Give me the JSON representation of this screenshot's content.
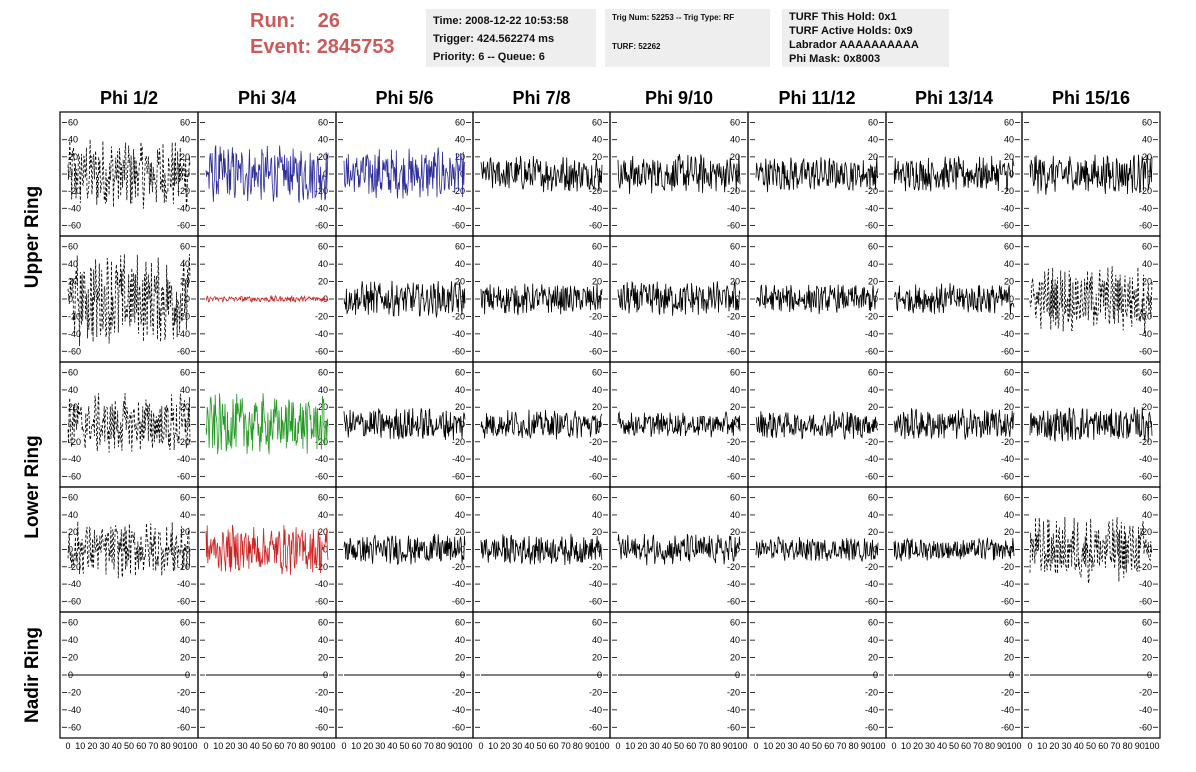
{
  "header": {
    "run_label": "Run:",
    "run_value": "26",
    "event_label": "Event:",
    "event_value": "2845753",
    "time": "Time: 2008-12-22 10:53:58",
    "trigger": "Trigger: 424.562274 ms",
    "priority": "Priority: 6 -- Queue: 6",
    "trig_num": "Trig Num: 52253 -- Trig Type: RF",
    "turf": "TURF: 52262",
    "turf_this_hold": "TURF This Hold: 0x1",
    "turf_active_holds": "TURF Active Holds: 0x9",
    "labrador": "Labrador AAAAAAAAAA",
    "phi_mask": "Phi Mask: 0x8003"
  },
  "chart_data": {
    "type": "line",
    "columns": [
      "Phi 1/2",
      "Phi 3/4",
      "Phi 5/6",
      "Phi 7/8",
      "Phi 9/10",
      "Phi 11/12",
      "Phi 13/14",
      "Phi 15/16"
    ],
    "rows": [
      "Upper Ring",
      "Lower Ring",
      "Nadir Ring"
    ],
    "ylim": [
      -70,
      70
    ],
    "y_ticks": [
      -60,
      -40,
      -20,
      0,
      20,
      40,
      60
    ],
    "xlim": [
      0,
      100
    ],
    "x_tick_labels": [
      "0",
      "10",
      "20",
      "30",
      "40",
      "50",
      "60",
      "70",
      "80",
      "90",
      "100"
    ],
    "colors": {
      "black": "#000000",
      "blue": "#2c2c9a",
      "red": "#cc2222",
      "green": "#229922"
    },
    "panels": [
      [
        "dashed:35",
        "blue:28",
        "blue:25",
        "solid:18",
        "solid:20",
        "solid:17",
        "solid:17",
        "solid:20"
      ],
      [
        "dashed:45",
        "red:3",
        "solid:17",
        "solid:15",
        "solid:17",
        "solid:14",
        "solid:15",
        "dashed:32"
      ],
      [
        "dashed:30",
        "green:30",
        "solid:16",
        "solid:14",
        "solid:12",
        "solid:14",
        "solid:16",
        "solid:17"
      ],
      [
        "dashed:27",
        "red:24",
        "solid:15",
        "solid:15",
        "solid:15",
        "solid:12",
        "solid:11",
        "dashed:32"
      ],
      [
        "flat:0",
        "flat:0",
        "flat:0",
        "flat:0",
        "flat:0",
        "flat:0",
        "flat:0",
        "flat:0"
      ]
    ]
  }
}
